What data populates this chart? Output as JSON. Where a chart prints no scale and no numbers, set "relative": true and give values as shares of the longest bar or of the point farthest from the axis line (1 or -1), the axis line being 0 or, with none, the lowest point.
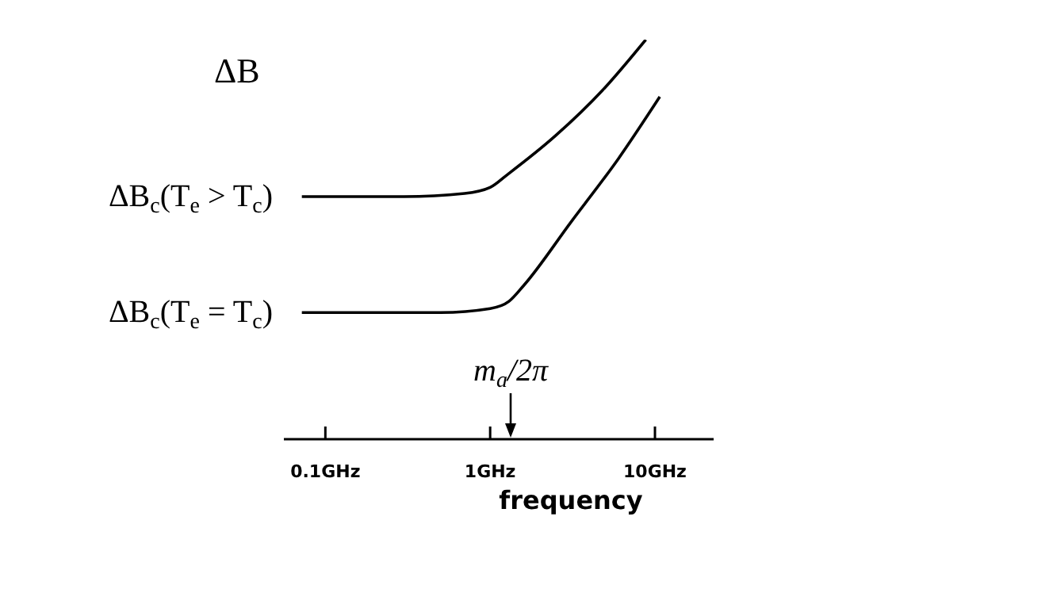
{
  "chart_data": {
    "type": "line",
    "relative": true,
    "ylabel": "ΔB",
    "xlabel": "frequency",
    "log": "x",
    "xlim": [
      0.056,
      22.7
    ],
    "xticks": [
      {
        "value": 0.1,
        "label": "0.1GHz"
      },
      {
        "value": 1,
        "label": "1GHz"
      },
      {
        "value": 10,
        "label": "10GHz"
      }
    ],
    "series": [
      {
        "color": "#000000",
        "x": [
          0.072,
          0.3,
          0.7,
          1.0,
          1.28,
          2.5,
          4.8,
          8.8
        ],
        "values": [
          0.607,
          0.607,
          0.615,
          0.63,
          0.663,
          0.76,
          0.873,
          1
        ]
      },
      {
        "color": "#000000",
        "x": [
          0.072,
          0.5,
          1.0,
          1.3,
          1.6,
          3.1,
          6,
          10.7
        ],
        "values": [
          0.317,
          0.317,
          0.327,
          0.345,
          0.385,
          0.544,
          0.702,
          0.857
        ]
      }
    ],
    "annotations": [
      "ΔB$_{c}$(T$_{e}$ > T$_{c}$)",
      "ΔB$_{c}$(T$_{e}$ = T$_{c}$)",
      "m$_{a}$/2π"
    ],
    "grid": false,
    "legend": false,
    "marker": "none",
    "line_style": "solid"
  }
}
